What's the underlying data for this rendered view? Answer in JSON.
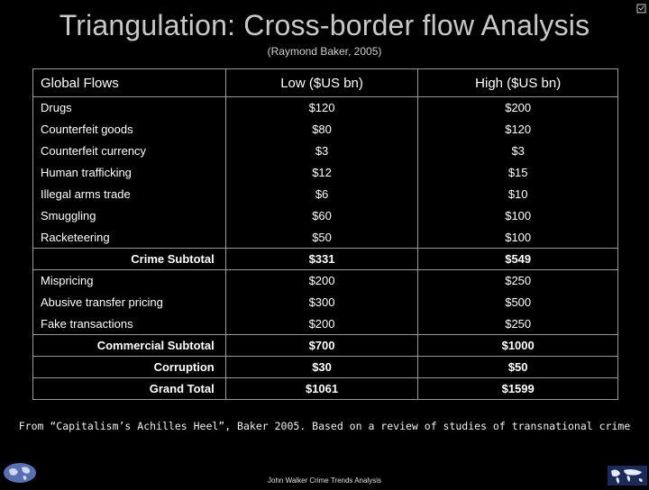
{
  "slide": {
    "title": "Triangulation: Cross-border flow Analysis",
    "subtitle": "(Raymond Baker, 2005)",
    "footnote": "From “Capitalism’s Achilles Heel”, Baker 2005.  Based on a review of studies of transnational crime",
    "footer": "John Walker Crime Trends Analysis"
  },
  "table": {
    "headers": [
      "Global Flows",
      "Low ($US bn)",
      "High ($US bn)"
    ],
    "rows": [
      {
        "label": "Drugs",
        "low": "$120",
        "high": "$200",
        "subtotal": false
      },
      {
        "label": "Counterfeit goods",
        "low": "$80",
        "high": "$120",
        "subtotal": false
      },
      {
        "label": "Counterfeit currency",
        "low": "$3",
        "high": "$3",
        "subtotal": false
      },
      {
        "label": "Human trafficking",
        "low": "$12",
        "high": "$15",
        "subtotal": false
      },
      {
        "label": "Illegal arms trade",
        "low": "$6",
        "high": "$10",
        "subtotal": false
      },
      {
        "label": "Smuggling",
        "low": "$60",
        "high": "$100",
        "subtotal": false
      },
      {
        "label": "Racketeering",
        "low": "$50",
        "high": "$100",
        "subtotal": false
      },
      {
        "label": "Crime Subtotal",
        "low": "$331",
        "high": "$549",
        "subtotal": true
      },
      {
        "label": "Mispricing",
        "low": "$200",
        "high": "$250",
        "subtotal": false
      },
      {
        "label": "Abusive transfer pricing",
        "low": "$300",
        "high": "$500",
        "subtotal": false
      },
      {
        "label": "Fake transactions",
        "low": "$200",
        "high": "$250",
        "subtotal": false
      },
      {
        "label": "Commercial Subtotal",
        "low": "$700",
        "high": "$1000",
        "subtotal": true
      },
      {
        "label": "Corruption",
        "low": "$30",
        "high": "$50",
        "subtotal": true
      },
      {
        "label": "Grand Total",
        "low": "$1061",
        "high": "$1599",
        "subtotal": true
      }
    ]
  },
  "icons": [
    "globe-icon",
    "world-map-icon",
    "corner-icon"
  ],
  "colors": {
    "background": "#000000",
    "title": "#c8c8c8",
    "text": "#ffffff",
    "border": "#9a9a9a"
  }
}
